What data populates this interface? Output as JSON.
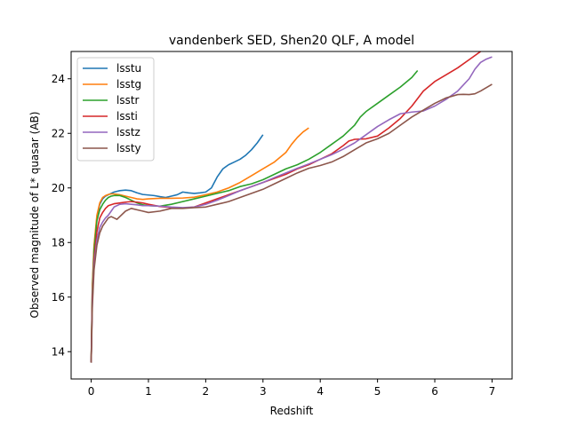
{
  "chart_data": {
    "type": "line",
    "title": "vandenberk SED, Shen20 QLF, A model",
    "xlabel": "Redshift",
    "ylabel": "Observed magnitude of L* quasar (AB)",
    "xlim": [
      -0.35,
      7.35
    ],
    "ylim": [
      13,
      25
    ],
    "xticks": [
      0,
      1,
      2,
      3,
      4,
      5,
      6,
      7
    ],
    "yticks": [
      14,
      16,
      18,
      20,
      22,
      24
    ],
    "grid": false,
    "legend_position": "top-left",
    "series": [
      {
        "name": "lsstu",
        "color": "#1f77b4",
        "x": [
          0.0,
          0.02,
          0.05,
          0.1,
          0.15,
          0.2,
          0.25,
          0.3,
          0.35,
          0.4,
          0.5,
          0.6,
          0.7,
          0.8,
          0.9,
          1.0,
          1.1,
          1.2,
          1.3,
          1.4,
          1.5,
          1.6,
          1.7,
          1.8,
          1.9,
          2.0,
          2.1,
          2.2,
          2.3,
          2.4,
          2.5,
          2.6,
          2.7,
          2.8,
          2.9,
          3.0
        ],
        "y": [
          13.6,
          16.3,
          17.8,
          18.9,
          19.4,
          19.6,
          19.7,
          19.75,
          19.8,
          19.85,
          19.9,
          19.92,
          19.9,
          19.82,
          19.76,
          19.74,
          19.72,
          19.68,
          19.65,
          19.7,
          19.75,
          19.85,
          19.82,
          19.8,
          19.82,
          19.85,
          20.0,
          20.4,
          20.7,
          20.85,
          20.95,
          21.05,
          21.2,
          21.4,
          21.65,
          21.95
        ]
      },
      {
        "name": "lsstg",
        "color": "#ff7f0e",
        "x": [
          0.0,
          0.02,
          0.05,
          0.1,
          0.15,
          0.2,
          0.25,
          0.3,
          0.35,
          0.4,
          0.5,
          0.6,
          0.7,
          0.8,
          0.9,
          1.0,
          1.2,
          1.4,
          1.6,
          1.8,
          2.0,
          2.2,
          2.4,
          2.6,
          2.8,
          3.0,
          3.2,
          3.4,
          3.5,
          3.6,
          3.7,
          3.8
        ],
        "y": [
          13.6,
          16.4,
          17.9,
          19.0,
          19.45,
          19.65,
          19.72,
          19.76,
          19.78,
          19.78,
          19.75,
          19.7,
          19.65,
          19.6,
          19.58,
          19.6,
          19.62,
          19.62,
          19.63,
          19.66,
          19.75,
          19.85,
          20.0,
          20.2,
          20.45,
          20.7,
          20.95,
          21.3,
          21.6,
          21.85,
          22.05,
          22.2
        ]
      },
      {
        "name": "lsstr",
        "color": "#2ca02c",
        "x": [
          0.0,
          0.02,
          0.05,
          0.1,
          0.15,
          0.2,
          0.25,
          0.3,
          0.35,
          0.4,
          0.5,
          0.6,
          0.7,
          0.8,
          0.9,
          1.0,
          1.2,
          1.4,
          1.6,
          1.8,
          2.0,
          2.2,
          2.4,
          2.6,
          2.8,
          3.0,
          3.2,
          3.4,
          3.6,
          3.8,
          4.0,
          4.2,
          4.4,
          4.6,
          4.7,
          4.8,
          5.0,
          5.2,
          5.4,
          5.6,
          5.7
        ],
        "y": [
          13.6,
          16.2,
          17.7,
          18.8,
          19.2,
          19.4,
          19.55,
          19.65,
          19.7,
          19.72,
          19.72,
          19.65,
          19.55,
          19.45,
          19.38,
          19.35,
          19.33,
          19.4,
          19.5,
          19.6,
          19.7,
          19.8,
          19.9,
          20.05,
          20.15,
          20.3,
          20.5,
          20.7,
          20.85,
          21.05,
          21.3,
          21.6,
          21.9,
          22.3,
          22.6,
          22.8,
          23.1,
          23.4,
          23.7,
          24.05,
          24.3
        ]
      },
      {
        "name": "lssti",
        "color": "#d62728",
        "x": [
          0.0,
          0.02,
          0.05,
          0.1,
          0.15,
          0.2,
          0.25,
          0.3,
          0.4,
          0.5,
          0.6,
          0.7,
          0.8,
          0.9,
          1.0,
          1.2,
          1.4,
          1.6,
          1.8,
          2.0,
          2.2,
          2.4,
          2.6,
          2.8,
          3.0,
          3.2,
          3.4,
          3.6,
          3.8,
          4.0,
          4.2,
          4.4,
          4.5,
          4.6,
          4.8,
          5.0,
          5.2,
          5.4,
          5.6,
          5.8,
          6.0,
          6.2,
          6.4,
          6.6,
          6.8
        ],
        "y": [
          13.6,
          16.0,
          17.4,
          18.4,
          18.9,
          19.1,
          19.25,
          19.35,
          19.42,
          19.45,
          19.48,
          19.5,
          19.48,
          19.45,
          19.4,
          19.32,
          19.28,
          19.26,
          19.3,
          19.45,
          19.6,
          19.75,
          19.9,
          20.05,
          20.2,
          20.35,
          20.5,
          20.7,
          20.85,
          21.05,
          21.25,
          21.55,
          21.72,
          21.78,
          21.8,
          21.9,
          22.2,
          22.55,
          23.0,
          23.55,
          23.9,
          24.15,
          24.4,
          24.7,
          25.0
        ]
      },
      {
        "name": "lsstz",
        "color": "#9467bd",
        "x": [
          0.0,
          0.02,
          0.05,
          0.1,
          0.15,
          0.2,
          0.25,
          0.3,
          0.35,
          0.4,
          0.5,
          0.6,
          0.7,
          0.8,
          0.9,
          1.0,
          1.2,
          1.4,
          1.6,
          1.8,
          2.0,
          2.2,
          2.4,
          2.6,
          2.8,
          3.0,
          3.2,
          3.4,
          3.6,
          3.8,
          4.0,
          4.2,
          4.4,
          4.6,
          4.8,
          5.0,
          5.2,
          5.4,
          5.6,
          5.8,
          6.0,
          6.2,
          6.4,
          6.6,
          6.7,
          6.8,
          6.9,
          7.0
        ],
        "y": [
          13.6,
          15.8,
          17.2,
          18.1,
          18.55,
          18.75,
          18.9,
          19.0,
          19.15,
          19.3,
          19.4,
          19.42,
          19.4,
          19.38,
          19.35,
          19.35,
          19.33,
          19.3,
          19.28,
          19.3,
          19.4,
          19.55,
          19.72,
          19.9,
          20.05,
          20.2,
          20.38,
          20.55,
          20.72,
          20.88,
          21.05,
          21.22,
          21.42,
          21.65,
          21.95,
          22.25,
          22.5,
          22.72,
          22.78,
          22.82,
          23.0,
          23.25,
          23.55,
          24.0,
          24.35,
          24.6,
          24.72,
          24.8
        ]
      },
      {
        "name": "lssty",
        "color": "#8c564b",
        "x": [
          0.0,
          0.02,
          0.05,
          0.1,
          0.15,
          0.2,
          0.25,
          0.3,
          0.35,
          0.4,
          0.45,
          0.5,
          0.6,
          0.7,
          0.8,
          0.9,
          1.0,
          1.2,
          1.4,
          1.6,
          1.8,
          2.0,
          2.2,
          2.4,
          2.6,
          2.8,
          3.0,
          3.2,
          3.4,
          3.6,
          3.8,
          4.0,
          4.2,
          4.4,
          4.6,
          4.8,
          5.0,
          5.2,
          5.4,
          5.6,
          5.8,
          6.0,
          6.2,
          6.4,
          6.5,
          6.6,
          6.7,
          6.8,
          7.0
        ],
        "y": [
          13.6,
          15.6,
          17.0,
          17.9,
          18.35,
          18.6,
          18.75,
          18.9,
          18.95,
          18.9,
          18.85,
          18.95,
          19.15,
          19.25,
          19.2,
          19.15,
          19.1,
          19.15,
          19.25,
          19.25,
          19.28,
          19.3,
          19.4,
          19.5,
          19.65,
          19.8,
          19.95,
          20.15,
          20.35,
          20.55,
          20.72,
          20.82,
          20.95,
          21.15,
          21.4,
          21.65,
          21.8,
          22.0,
          22.3,
          22.6,
          22.85,
          23.1,
          23.3,
          23.42,
          23.43,
          23.42,
          23.45,
          23.55,
          23.8
        ]
      }
    ]
  }
}
